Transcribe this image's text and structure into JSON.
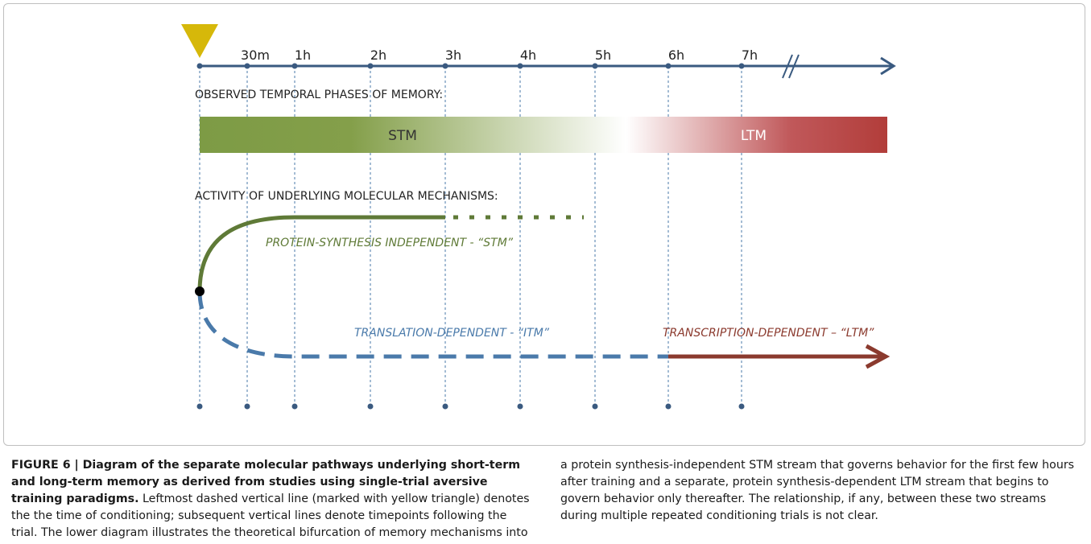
{
  "timeline": {
    "ticks": [
      "30m",
      "1h",
      "2h",
      "3h",
      "4h",
      "5h",
      "6h",
      "7h"
    ]
  },
  "phases": {
    "heading": "OBSERVED TEMPORAL PHASES OF MEMORY:",
    "stm": "STM",
    "ltm": "LTM"
  },
  "mechanisms": {
    "heading": "ACTIVITY OF UNDERLYING MOLECULAR MECHANISMS:",
    "stm_label": "PROTEIN-SYNTHESIS INDEPENDENT - “STM”",
    "itm_label": "TRANSLATION-DEPENDENT - “ITM”",
    "ltm_label": "TRANSCRIPTION-DEPENDENT – “LTM”"
  },
  "caption": {
    "bold": "FIGURE 6 | Diagram of the separate molecular pathways underlying short-term and long-term memory as derived from studies using single-trial aversive training paradigms.",
    "text": "Leftmost dashed vertical line (marked with yellow triangle) denotes the the time of conditioning; subsequent vertical lines denote timepoints following the trial. The lower diagram illustrates the theoretical bifurcation of memory mechanisms into a protein synthesis-independent STM stream that governs behavior for the first few hours after training and a separate, protein synthesis-dependent LTM stream that begins to govern behavior only thereafter. The relationship, if any, between these two streams during multiple repeated conditioning trials is not clear."
  }
}
